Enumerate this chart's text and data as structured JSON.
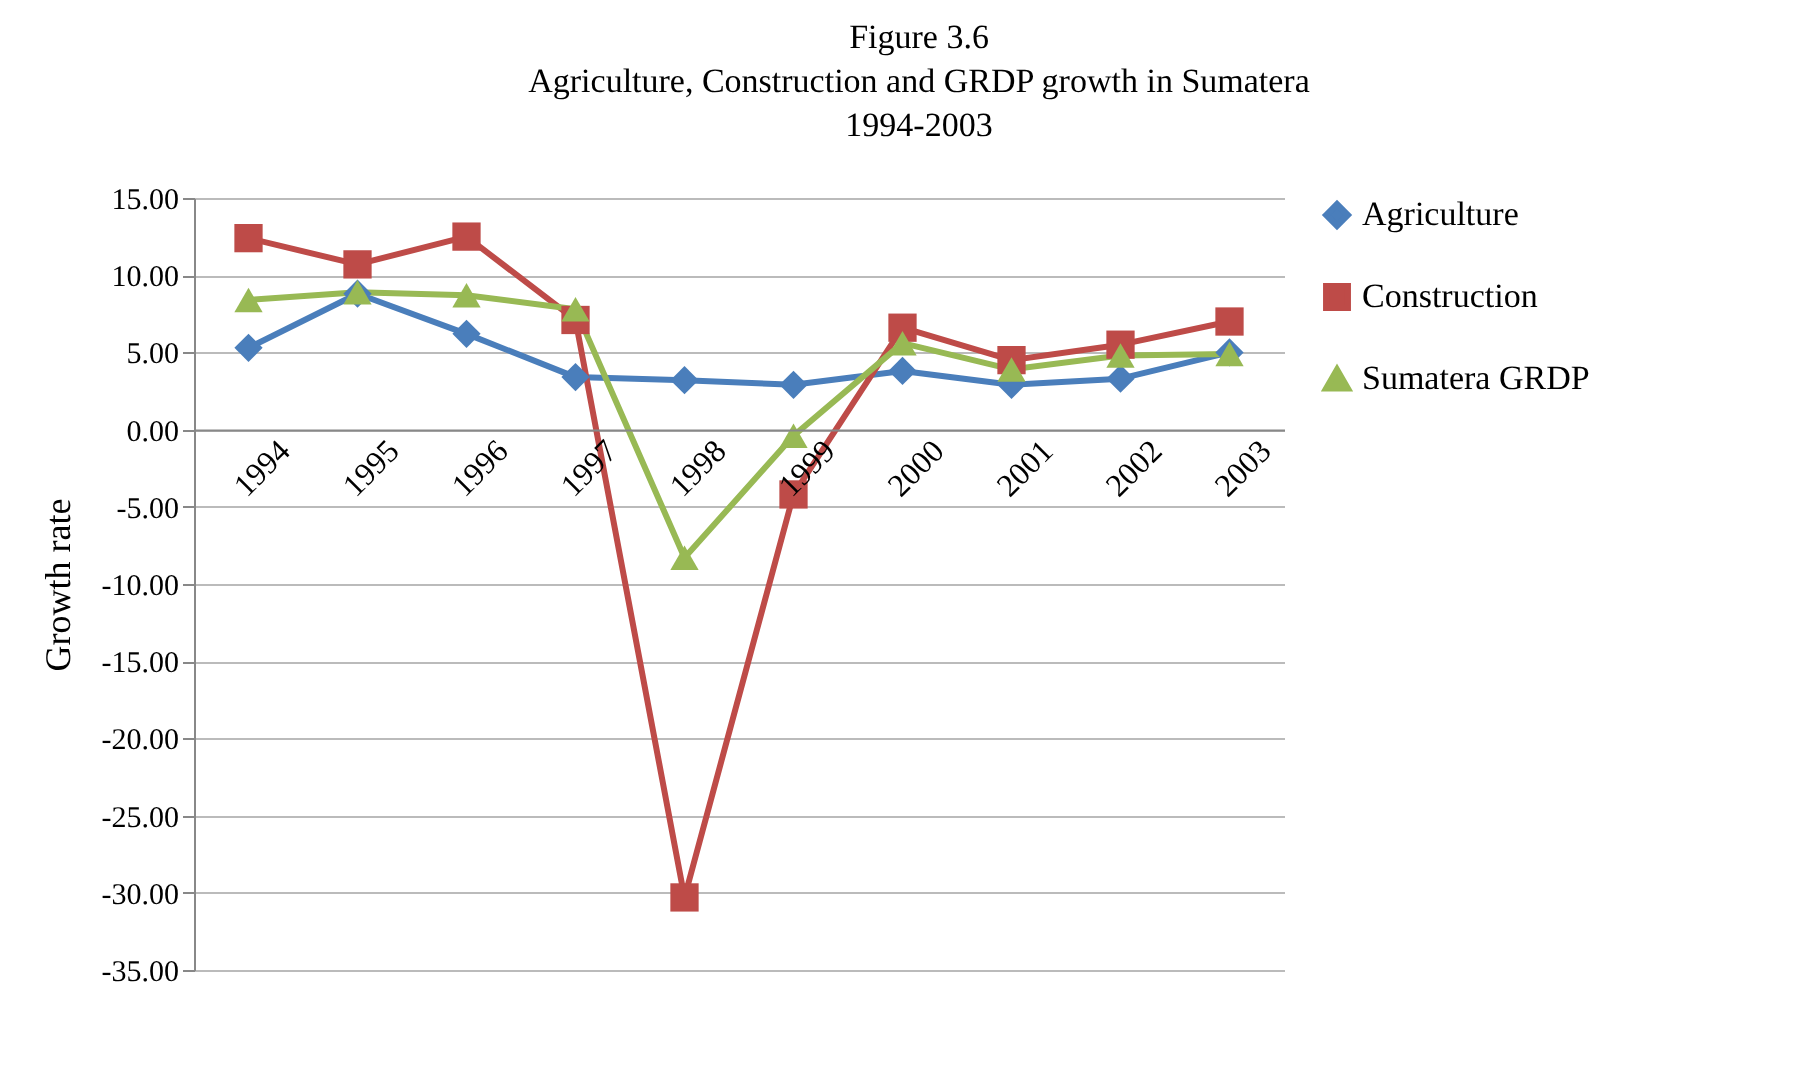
{
  "chart_data": {
    "type": "line",
    "title": "Figure 3.6",
    "subtitle": "Agriculture, Construction and GRDP growth in Sumatera\n1994-2003",
    "ylabel": "Growth rate",
    "categories": [
      "1994",
      "1995",
      "1996",
      "1997",
      "1998",
      "1999",
      "2000",
      "2001",
      "2002",
      "2003"
    ],
    "series": [
      {
        "name": "Agriculture",
        "color": "#4a7ebb",
        "marker": "diamond",
        "values": [
          5.3,
          8.8,
          6.2,
          3.4,
          3.2,
          2.9,
          3.8,
          2.9,
          3.3,
          5.0
        ]
      },
      {
        "name": "Construction",
        "color": "#be4b48",
        "marker": "square",
        "values": [
          12.4,
          10.7,
          12.5,
          7.1,
          -30.3,
          -4.2,
          6.6,
          4.5,
          5.5,
          7.0
        ]
      },
      {
        "name": "Sumatera GRDP",
        "color": "#98b954",
        "marker": "triangle",
        "values": [
          8.4,
          8.9,
          8.7,
          7.8,
          -8.3,
          -0.4,
          5.6,
          3.9,
          4.8,
          4.9
        ]
      }
    ],
    "ylim": [
      -35,
      15
    ],
    "yticks": [
      {
        "value": -35,
        "label": "-35.00"
      },
      {
        "value": -30,
        "label": "-30.00"
      },
      {
        "value": -25,
        "label": "-25.00"
      },
      {
        "value": -20,
        "label": "-20.00"
      },
      {
        "value": -15,
        "label": "-15.00"
      },
      {
        "value": -10,
        "label": "-10.00"
      },
      {
        "value": -5,
        "label": "-5.00"
      },
      {
        "value": 0,
        "label": "0.00"
      },
      {
        "value": 5,
        "label": "5.00"
      },
      {
        "value": 10,
        "label": "10.00"
      },
      {
        "value": 15,
        "label": "15.00"
      }
    ],
    "grid": "y",
    "legend": "right",
    "line_style": "solid"
  }
}
